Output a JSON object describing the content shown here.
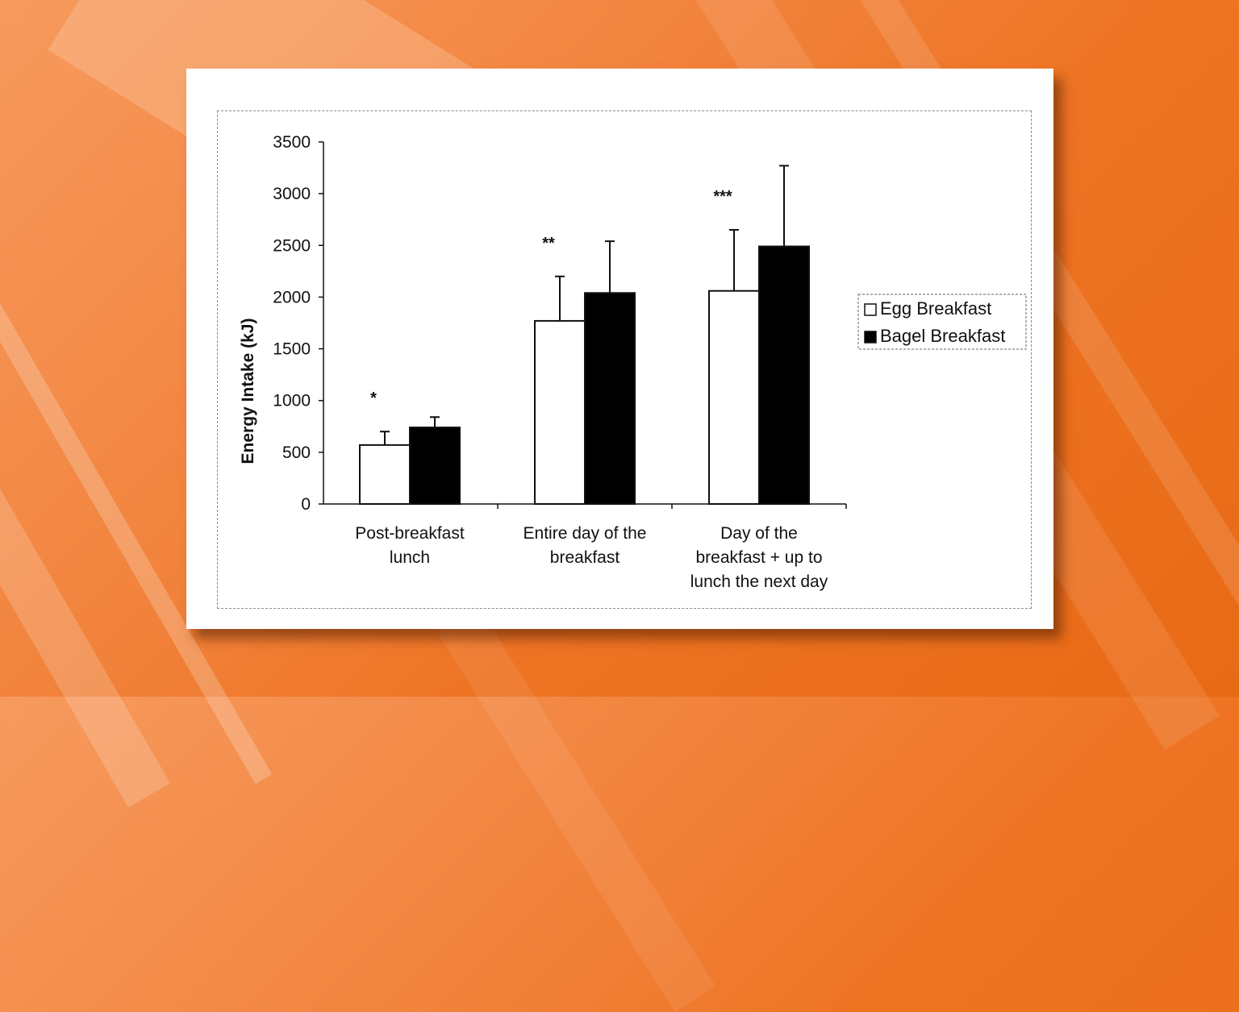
{
  "chart_data": {
    "type": "bar",
    "title": "",
    "xlabel": "",
    "ylabel": "Energy Intake (kJ)",
    "ylim": [
      0,
      3500
    ],
    "yticks": [
      "0",
      "500",
      "1000",
      "1500",
      "2000",
      "2500",
      "3000",
      "3500"
    ],
    "categories": [
      [
        "Post-breakfast",
        "lunch"
      ],
      [
        "Entire day of the",
        "breakfast"
      ],
      [
        "Day of the",
        "breakfast + up to",
        "lunch the next day"
      ]
    ],
    "series": [
      {
        "name": "Egg Breakfast",
        "color": "#ffffff",
        "values": [
          570,
          1770,
          2060
        ],
        "errors": [
          130,
          430,
          590
        ]
      },
      {
        "name": "Bagel Breakfast",
        "color": "#000000",
        "values": [
          740,
          2040,
          2490
        ],
        "errors": [
          100,
          500,
          780
        ]
      }
    ],
    "significance": [
      "*",
      "**",
      "***"
    ],
    "legend": "right",
    "grid": false
  }
}
